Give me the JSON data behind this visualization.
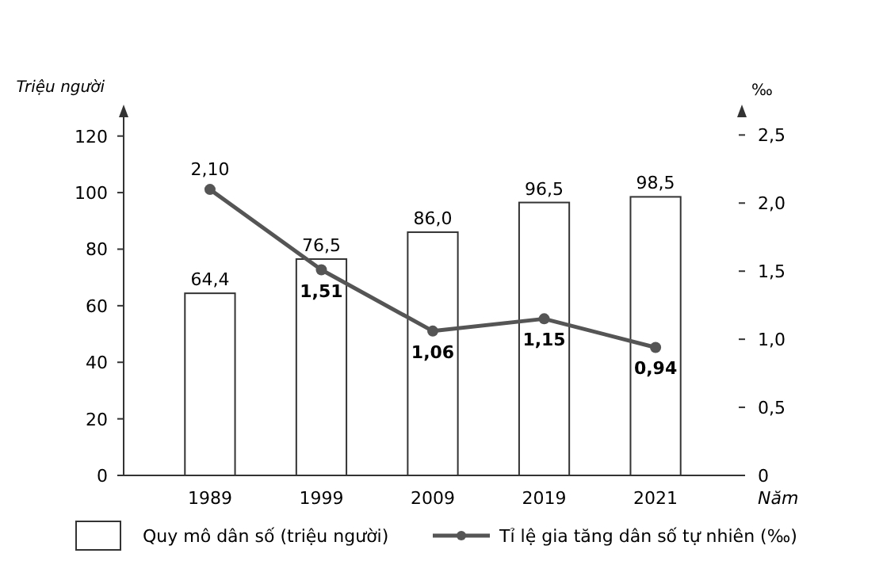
{
  "chart_data": {
    "type": "bar",
    "categories": [
      "1989",
      "1999",
      "2009",
      "2019",
      "2021"
    ],
    "xlabel": "Năm",
    "ylabel": "Triệu người",
    "y2label": "‰",
    "ylim": [
      0,
      130
    ],
    "yticks": [
      0,
      20,
      40,
      60,
      80,
      100,
      120
    ],
    "y2lim": [
      0,
      2.7
    ],
    "y2ticks": [
      {
        "value": 0,
        "label": "0"
      },
      {
        "value": 0.5,
        "label": "0,5"
      },
      {
        "value": 1,
        "label": "1,0"
      },
      {
        "value": 1.5,
        "label": "1,5"
      },
      {
        "value": 2,
        "label": "2,0"
      },
      {
        "value": 2.5,
        "label": "2,5"
      }
    ],
    "legend": "bottom",
    "series": [
      {
        "name": "Quy mô dân số (triệu người)",
        "color": "#ffffff",
        "values": [
          64.4,
          76.5,
          86.0,
          96.5,
          98.5
        ],
        "value_labels": [
          "64,4",
          "76,5",
          "86,0",
          "96,5",
          "98,5"
        ]
      },
      {
        "name": "Tỉ lệ gia tăng dân số tự nhiên (‰)",
        "type": "line",
        "axis": "y2",
        "color": "#555555",
        "marker": "circle",
        "values": [
          2.1,
          1.51,
          1.06,
          1.15,
          0.94
        ],
        "value_labels": [
          "2,10",
          "1,51",
          "1,06",
          "1,15",
          "0,94"
        ]
      }
    ]
  }
}
